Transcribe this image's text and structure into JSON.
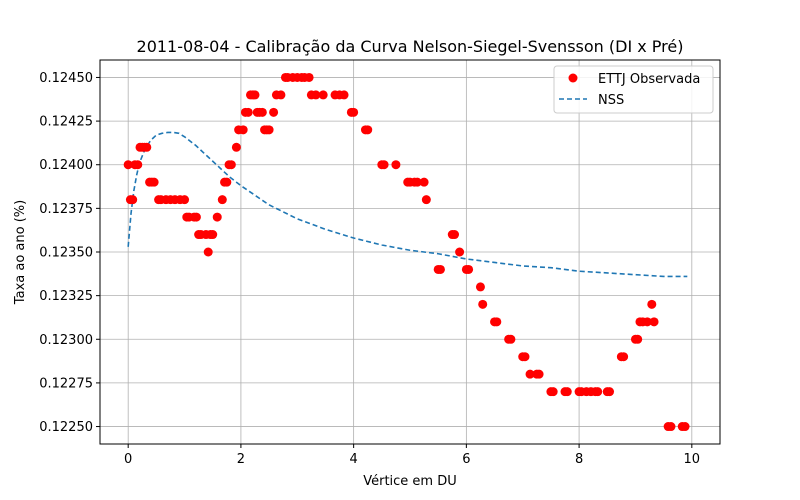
{
  "chart_data": {
    "type": "scatter",
    "title": "2011-08-04 - Calibração da Curva Nelson-Siegel-Svensson (DI x Pré)",
    "xlabel": "Vértice em DU",
    "ylabel": "Taxa ao ano (%)",
    "xlim": [
      -0.5,
      10.5
    ],
    "ylim": [
      0.1224,
      0.1246
    ],
    "xticks": [
      0,
      2,
      4,
      6,
      8,
      10
    ],
    "xtick_labels": [
      "0",
      "2",
      "4",
      "6",
      "8",
      "10"
    ],
    "yticks": [
      0.1225,
      0.12275,
      0.123,
      0.12325,
      0.1235,
      0.12375,
      0.124,
      0.12425,
      0.1245
    ],
    "ytick_labels": [
      "0.12250",
      "0.12275",
      "0.12300",
      "0.12325",
      "0.12350",
      "0.12375",
      "0.12400",
      "0.12425",
      "0.12450"
    ],
    "grid": true,
    "legend_position": "top-right",
    "series": [
      {
        "name": "ETTJ Observada",
        "kind": "scatter",
        "color": "#ff0000",
        "points": [
          [
            0.0,
            0.124
          ],
          [
            0.04,
            0.1238
          ],
          [
            0.08,
            0.1238
          ],
          [
            0.12,
            0.124
          ],
          [
            0.17,
            0.124
          ],
          [
            0.21,
            0.1241
          ],
          [
            0.25,
            0.1241
          ],
          [
            0.29,
            0.1241
          ],
          [
            0.33,
            0.1241
          ],
          [
            0.38,
            0.1239
          ],
          [
            0.42,
            0.1239
          ],
          [
            0.46,
            0.1239
          ],
          [
            0.54,
            0.1238
          ],
          [
            0.58,
            0.1238
          ],
          [
            0.67,
            0.1238
          ],
          [
            0.75,
            0.1238
          ],
          [
            0.83,
            0.1238
          ],
          [
            0.92,
            0.1238
          ],
          [
            1.0,
            0.1238
          ],
          [
            1.04,
            0.1237
          ],
          [
            1.08,
            0.1237
          ],
          [
            1.17,
            0.1237
          ],
          [
            1.21,
            0.1237
          ],
          [
            1.25,
            0.1236
          ],
          [
            1.29,
            0.1236
          ],
          [
            1.38,
            0.1236
          ],
          [
            1.42,
            0.1235
          ],
          [
            1.46,
            0.1236
          ],
          [
            1.5,
            0.1236
          ],
          [
            1.58,
            0.1237
          ],
          [
            1.67,
            0.1238
          ],
          [
            1.71,
            0.1239
          ],
          [
            1.75,
            0.1239
          ],
          [
            1.79,
            0.124
          ],
          [
            1.83,
            0.124
          ],
          [
            1.92,
            0.1241
          ],
          [
            1.96,
            0.1242
          ],
          [
            2.04,
            0.1242
          ],
          [
            2.08,
            0.1243
          ],
          [
            2.13,
            0.1243
          ],
          [
            2.17,
            0.1244
          ],
          [
            2.21,
            0.1244
          ],
          [
            2.25,
            0.1244
          ],
          [
            2.29,
            0.1243
          ],
          [
            2.33,
            0.1243
          ],
          [
            2.38,
            0.1243
          ],
          [
            2.42,
            0.1242
          ],
          [
            2.46,
            0.1242
          ],
          [
            2.5,
            0.1242
          ],
          [
            2.58,
            0.1243
          ],
          [
            2.63,
            0.1244
          ],
          [
            2.71,
            0.1244
          ],
          [
            2.79,
            0.1245
          ],
          [
            2.83,
            0.1245
          ],
          [
            2.92,
            0.1245
          ],
          [
            3.0,
            0.1245
          ],
          [
            3.08,
            0.1245
          ],
          [
            3.13,
            0.1245
          ],
          [
            3.21,
            0.1245
          ],
          [
            3.25,
            0.1244
          ],
          [
            3.33,
            0.1244
          ],
          [
            3.46,
            0.1244
          ],
          [
            3.67,
            0.1244
          ],
          [
            3.75,
            0.1244
          ],
          [
            3.83,
            0.1244
          ],
          [
            3.96,
            0.1243
          ],
          [
            4.0,
            0.1243
          ],
          [
            4.21,
            0.1242
          ],
          [
            4.25,
            0.1242
          ],
          [
            4.5,
            0.124
          ],
          [
            4.54,
            0.124
          ],
          [
            4.75,
            0.124
          ],
          [
            4.96,
            0.1239
          ],
          [
            5.0,
            0.1239
          ],
          [
            5.08,
            0.1239
          ],
          [
            5.13,
            0.1239
          ],
          [
            5.25,
            0.1239
          ],
          [
            5.29,
            0.1238
          ],
          [
            5.5,
            0.1234
          ],
          [
            5.54,
            0.1234
          ],
          [
            5.75,
            0.1236
          ],
          [
            5.79,
            0.1236
          ],
          [
            5.88,
            0.1235
          ],
          [
            6.0,
            0.1234
          ],
          [
            6.04,
            0.1234
          ],
          [
            6.25,
            0.1233
          ],
          [
            6.29,
            0.1232
          ],
          [
            6.5,
            0.1231
          ],
          [
            6.54,
            0.1231
          ],
          [
            6.75,
            0.123
          ],
          [
            6.79,
            0.123
          ],
          [
            7.0,
            0.1229
          ],
          [
            7.04,
            0.1229
          ],
          [
            7.13,
            0.1228
          ],
          [
            7.25,
            0.1228
          ],
          [
            7.29,
            0.1228
          ],
          [
            7.5,
            0.1227
          ],
          [
            7.54,
            0.1227
          ],
          [
            7.75,
            0.1227
          ],
          [
            7.79,
            0.1227
          ],
          [
            8.0,
            0.1227
          ],
          [
            8.04,
            0.1227
          ],
          [
            8.13,
            0.1227
          ],
          [
            8.21,
            0.1227
          ],
          [
            8.29,
            0.1227
          ],
          [
            8.33,
            0.1227
          ],
          [
            8.5,
            0.1227
          ],
          [
            8.54,
            0.1227
          ],
          [
            8.75,
            0.1229
          ],
          [
            8.79,
            0.1229
          ],
          [
            9.0,
            0.123
          ],
          [
            9.04,
            0.123
          ],
          [
            9.08,
            0.1231
          ],
          [
            9.13,
            0.1231
          ],
          [
            9.21,
            0.1231
          ],
          [
            9.29,
            0.1232
          ],
          [
            9.33,
            0.1231
          ],
          [
            9.58,
            0.1225
          ],
          [
            9.63,
            0.1225
          ],
          [
            9.83,
            0.1225
          ],
          [
            9.88,
            0.1225
          ]
        ]
      },
      {
        "name": "NSS",
        "kind": "line",
        "style": "dashed",
        "color": "#1f77b4",
        "points": [
          [
            0.0,
            0.12353
          ],
          [
            0.05,
            0.12372
          ],
          [
            0.1,
            0.12385
          ],
          [
            0.15,
            0.12394
          ],
          [
            0.2,
            0.12401
          ],
          [
            0.3,
            0.12409
          ],
          [
            0.4,
            0.12414
          ],
          [
            0.5,
            0.12417
          ],
          [
            0.6,
            0.12418
          ],
          [
            0.7,
            0.124185
          ],
          [
            0.8,
            0.124185
          ],
          [
            0.9,
            0.12418
          ],
          [
            1.0,
            0.12416
          ],
          [
            1.2,
            0.12411
          ],
          [
            1.4,
            0.12405
          ],
          [
            1.6,
            0.12399
          ],
          [
            1.8,
            0.12393
          ],
          [
            2.0,
            0.12388
          ],
          [
            2.5,
            0.12377
          ],
          [
            3.0,
            0.12369
          ],
          [
            3.5,
            0.12363
          ],
          [
            4.0,
            0.12358
          ],
          [
            4.5,
            0.12354
          ],
          [
            5.0,
            0.12351
          ],
          [
            5.5,
            0.12349
          ],
          [
            6.0,
            0.12346
          ],
          [
            6.5,
            0.12344
          ],
          [
            7.0,
            0.12342
          ],
          [
            7.5,
            0.12341
          ],
          [
            8.0,
            0.12339
          ],
          [
            8.5,
            0.12338
          ],
          [
            9.0,
            0.12337
          ],
          [
            9.5,
            0.12336
          ],
          [
            9.92,
            0.12336
          ]
        ]
      }
    ]
  }
}
